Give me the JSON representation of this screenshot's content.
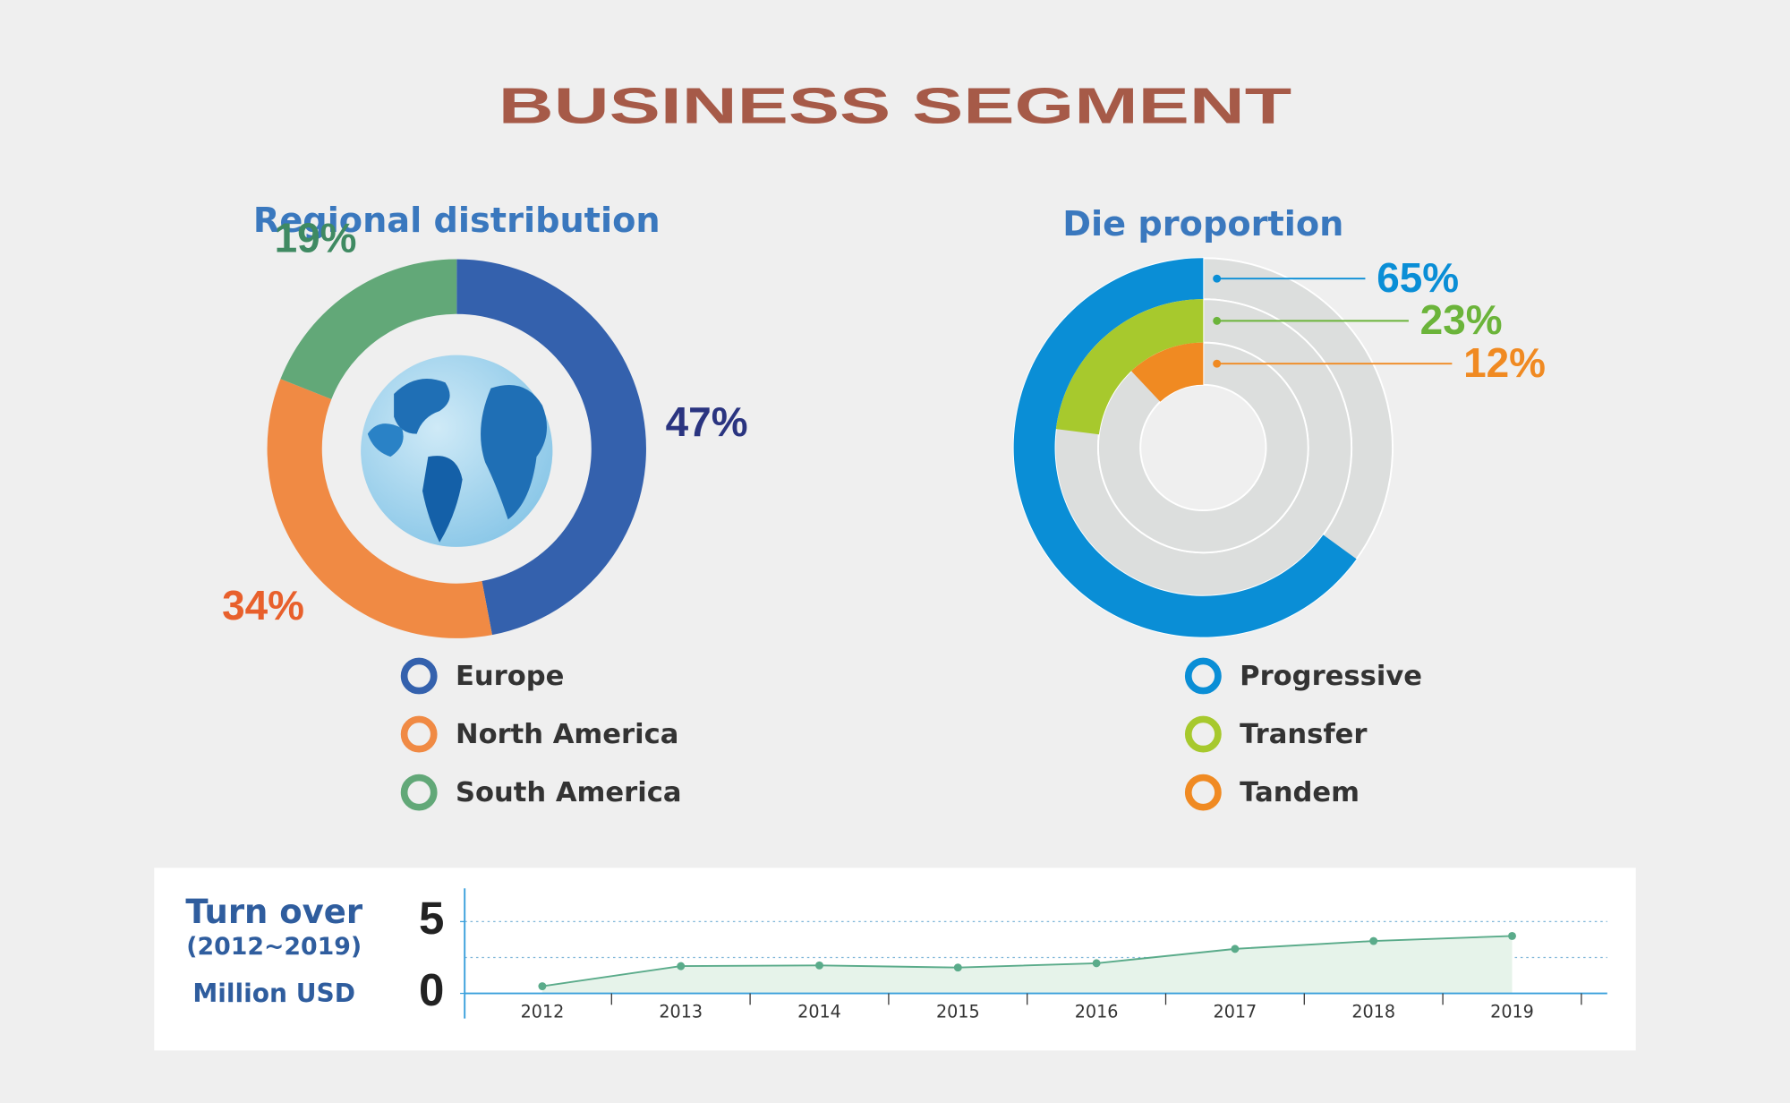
{
  "page_title": "BUSINESS SEGMENT",
  "chart_data": [
    {
      "type": "pie",
      "title": "Regional distribution",
      "categories": [
        "Europe",
        "North America",
        "South America"
      ],
      "values": [
        47,
        34,
        19
      ],
      "value_labels": [
        "47%",
        "34%",
        "19%"
      ],
      "colors": [
        "#3461ad",
        "#f08a44",
        "#62a878"
      ],
      "label_colors": [
        "#2a3480",
        "#e8602c",
        "#3f8a62"
      ]
    },
    {
      "type": "radial_bar",
      "title": "Die proportion",
      "categories": [
        "Progressive",
        "Transfer",
        "Tandem"
      ],
      "values": [
        65,
        23,
        12
      ],
      "value_labels": [
        "65%",
        "23%",
        "12%"
      ],
      "colors": [
        "#0a8ed6",
        "#a7c92d",
        "#f08a22"
      ],
      "label_colors": [
        "#0a8ed6",
        "#6bb43a",
        "#f08a22"
      ]
    },
    {
      "type": "line",
      "title": "Turn over",
      "subtitle": "(2012~2019)",
      "y_label": "Million USD",
      "categories": [
        "2012",
        "2013",
        "2014",
        "2015",
        "2016",
        "2017",
        "2018",
        "2019"
      ],
      "values": [
        0.5,
        1.9,
        1.95,
        1.8,
        2.1,
        3.1,
        3.65,
        4.0
      ],
      "color": "#5aab8a",
      "ylim": [
        0,
        7
      ],
      "yticks": [
        0,
        5
      ],
      "gridlines": [
        2.5,
        5
      ]
    }
  ]
}
